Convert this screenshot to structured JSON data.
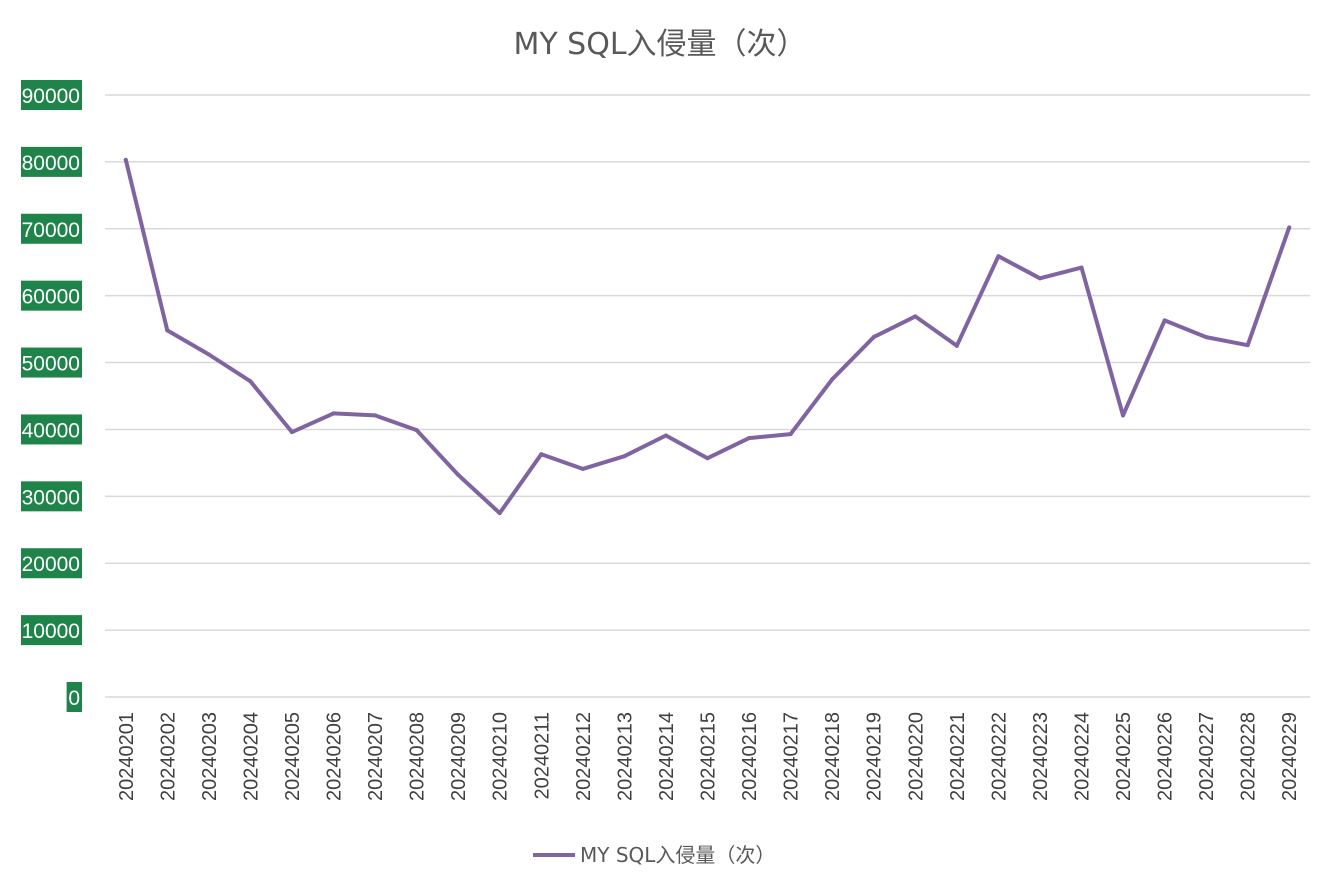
{
  "chart_data": {
    "type": "line",
    "title": "MY SQL入侵量（次）",
    "xlabel": "",
    "ylabel": "",
    "ylim": [
      0,
      90000
    ],
    "yticks": [
      0,
      10000,
      20000,
      30000,
      40000,
      50000,
      60000,
      70000,
      80000,
      90000
    ],
    "ytick_labels": [
      "0",
      "10000",
      "20000",
      "30000",
      "40000",
      "50000",
      "60000",
      "70000",
      "80000",
      "90000"
    ],
    "grid": true,
    "legend_position": "bottom",
    "categories": [
      "20240201",
      "20240202",
      "20240203",
      "20240204",
      "20240205",
      "20240206",
      "20240207",
      "20240208",
      "20240209",
      "20240210",
      "20240211",
      "20240212",
      "20240213",
      "20240214",
      "20240215",
      "20240216",
      "20240217",
      "20240218",
      "20240219",
      "20240220",
      "20240221",
      "20240222",
      "20240223",
      "20240224",
      "20240225",
      "20240226",
      "20240227",
      "20240228",
      "20240229"
    ],
    "series": [
      {
        "name": "MY SQL入侵量（次）",
        "color": "#8064a2",
        "values": [
          80300,
          54800,
          51200,
          47200,
          39600,
          42400,
          42100,
          39900,
          33200,
          27500,
          36300,
          34100,
          36000,
          39100,
          35700,
          38700,
          39300,
          47500,
          53800,
          56900,
          52500,
          65900,
          62600,
          64200,
          42100,
          56300,
          53800,
          52600,
          70200
        ]
      }
    ]
  }
}
